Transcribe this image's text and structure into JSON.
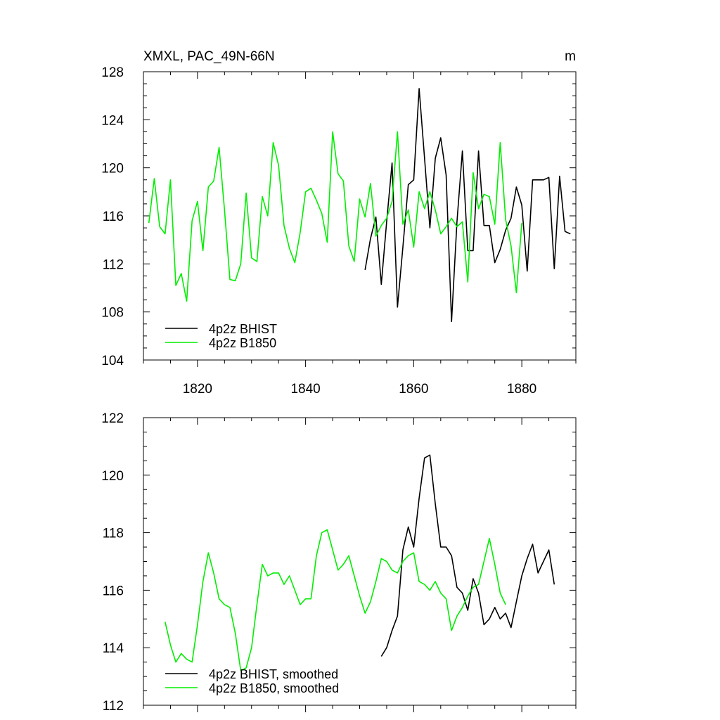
{
  "colors": {
    "bhist": "#000000",
    "b1850": "#00ee00",
    "axis": "#000000"
  },
  "chart_data": [
    {
      "type": "line",
      "title": "XMXL, PAC_49N-66N",
      "units": "m",
      "xlim": [
        1810,
        1890
      ],
      "ylim": [
        104,
        128
      ],
      "yticks": [
        104,
        108,
        112,
        116,
        120,
        124,
        128
      ],
      "xticks": [
        1820,
        1840,
        1860,
        1880
      ],
      "legend_position": "bottom-left",
      "series": [
        {
          "name": "4p2z BHIST",
          "color": "#000000",
          "x": [
            1851,
            1852,
            1853,
            1854,
            1855,
            1856,
            1857,
            1858,
            1859,
            1860,
            1861,
            1862,
            1863,
            1864,
            1865,
            1866,
            1867,
            1868,
            1869,
            1870,
            1871,
            1872,
            1873,
            1874,
            1875,
            1876,
            1877,
            1878,
            1879,
            1880,
            1881,
            1882,
            1883,
            1884,
            1885,
            1886,
            1887,
            1888,
            1889
          ],
          "y": [
            111.5,
            114.1,
            115.9,
            110.3,
            115.5,
            120.4,
            108.4,
            113.4,
            118.6,
            119.0,
            126.6,
            120.8,
            115.0,
            120.8,
            122.5,
            119.4,
            107.2,
            115.5,
            121.4,
            113.1,
            113.1,
            121.4,
            115.2,
            115.2,
            112.1,
            113.2,
            114.8,
            115.8,
            118.4,
            116.9,
            111.4,
            119.0,
            119.0,
            119.0,
            119.2,
            111.6,
            119.3,
            114.7,
            114.5
          ]
        },
        {
          "name": "4p2z B1850",
          "color": "#00ee00",
          "x": [
            1811,
            1812,
            1813,
            1814,
            1815,
            1816,
            1817,
            1818,
            1819,
            1820,
            1821,
            1822,
            1823,
            1824,
            1825,
            1826,
            1827,
            1828,
            1829,
            1830,
            1831,
            1832,
            1833,
            1834,
            1835,
            1836,
            1837,
            1838,
            1839,
            1840,
            1841,
            1842,
            1843,
            1844,
            1845,
            1846,
            1847,
            1848,
            1849,
            1850,
            1851,
            1852,
            1853,
            1854,
            1855,
            1856,
            1857,
            1858,
            1859,
            1860,
            1861,
            1862,
            1863,
            1864,
            1865,
            1866,
            1867,
            1868,
            1869,
            1870,
            1871,
            1872,
            1873,
            1874,
            1875,
            1876,
            1877,
            1878,
            1879,
            1880
          ],
          "y": [
            115.4,
            119.1,
            115.1,
            114.5,
            119.0,
            110.2,
            111.2,
            108.9,
            115.6,
            117.2,
            113.1,
            118.4,
            118.9,
            121.7,
            116.5,
            110.7,
            110.6,
            112.0,
            117.9,
            112.5,
            112.2,
            117.6,
            116.0,
            122.1,
            120.2,
            115.2,
            113.3,
            112.1,
            114.6,
            118.0,
            118.3,
            117.3,
            116.2,
            113.8,
            123.0,
            119.5,
            118.9,
            113.5,
            112.2,
            117.4,
            115.9,
            118.7,
            114.3,
            115.2,
            115.8,
            117.2,
            123.0,
            115.3,
            116.5,
            113.4,
            118.0,
            116.6,
            118.0,
            116.5,
            114.5,
            115.1,
            115.8,
            115.1,
            115.5,
            110.5,
            119.6,
            116.6,
            117.8,
            117.6,
            115.3,
            122.1,
            115.7,
            113.5,
            109.6,
            115.4
          ]
        }
      ]
    },
    {
      "type": "line",
      "title": "",
      "xlim": [
        1810,
        1890
      ],
      "ylim": [
        112,
        122
      ],
      "yticks": [
        112,
        114,
        116,
        118,
        120,
        122
      ],
      "legend_position": "bottom-left",
      "series": [
        {
          "name": "4p2z BHIST, smoothed",
          "color": "#000000",
          "x": [
            1854,
            1855,
            1856,
            1857,
            1858,
            1859,
            1860,
            1861,
            1862,
            1863,
            1864,
            1865,
            1866,
            1867,
            1868,
            1869,
            1870,
            1871,
            1872,
            1873,
            1874,
            1875,
            1876,
            1877,
            1878,
            1879,
            1880,
            1881,
            1882,
            1883,
            1884,
            1885,
            1886
          ],
          "y": [
            113.7,
            114.0,
            114.6,
            115.1,
            117.4,
            118.2,
            117.5,
            119.2,
            120.6,
            120.7,
            119.0,
            117.5,
            117.5,
            117.2,
            116.1,
            115.9,
            115.3,
            116.4,
            115.9,
            114.8,
            115.0,
            115.4,
            115.0,
            115.2,
            114.7,
            115.6,
            116.5,
            117.1,
            117.6,
            116.6,
            117.0,
            117.4,
            116.2
          ]
        },
        {
          "name": "4p2z B1850, smoothed",
          "color": "#00ee00",
          "x": [
            1814,
            1815,
            1816,
            1817,
            1818,
            1819,
            1820,
            1821,
            1822,
            1823,
            1824,
            1825,
            1826,
            1827,
            1828,
            1829,
            1830,
            1831,
            1832,
            1833,
            1834,
            1835,
            1836,
            1837,
            1838,
            1839,
            1840,
            1841,
            1842,
            1843,
            1844,
            1845,
            1846,
            1847,
            1848,
            1849,
            1850,
            1851,
            1852,
            1853,
            1854,
            1855,
            1856,
            1857,
            1858,
            1859,
            1860,
            1861,
            1862,
            1863,
            1864,
            1865,
            1866,
            1867,
            1868,
            1869,
            1870,
            1871,
            1872,
            1873,
            1874,
            1875,
            1876,
            1877
          ],
          "y": [
            114.9,
            114.1,
            113.5,
            113.8,
            113.6,
            113.5,
            114.8,
            116.3,
            117.3,
            116.6,
            115.7,
            115.5,
            115.4,
            114.5,
            113.2,
            113.3,
            114.0,
            115.5,
            116.9,
            116.5,
            116.6,
            116.6,
            116.2,
            116.5,
            116.0,
            115.5,
            115.7,
            115.7,
            117.2,
            118.0,
            118.1,
            117.4,
            116.7,
            116.9,
            117.2,
            116.5,
            115.8,
            115.2,
            115.6,
            116.3,
            117.1,
            117.0,
            116.7,
            116.6,
            117.0,
            117.2,
            117.3,
            116.3,
            116.2,
            116.0,
            116.3,
            115.9,
            115.7,
            114.6,
            115.1,
            115.4,
            115.8,
            116.1,
            116.2,
            117.0,
            117.8,
            116.9,
            115.9,
            115.5
          ]
        }
      ]
    }
  ]
}
